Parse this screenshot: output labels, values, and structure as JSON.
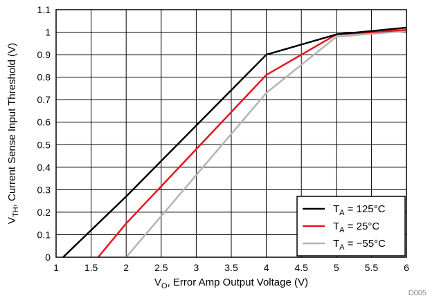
{
  "chart_data": {
    "type": "line",
    "xlabel": {
      "main": "V",
      "sub": "O",
      "rest": ", Error Amp Output Voltage (V)"
    },
    "ylabel": {
      "main": "V",
      "sub": "TH",
      "rest": ", Current Sense Input Threshold (V)"
    },
    "xlim": [
      1,
      6
    ],
    "ylim": [
      0,
      1.1
    ],
    "x_ticks": [
      "1",
      "1.5",
      "2",
      "2.5",
      "3",
      "3.5",
      "4",
      "4.5",
      "5",
      "5.5",
      "6"
    ],
    "y_ticks": [
      "0",
      "0.1",
      "0.2",
      "0.3",
      "0.4",
      "0.5",
      "0.6",
      "0.7",
      "0.8",
      "0.9",
      "1",
      "1.1"
    ],
    "grid": true,
    "legend_position": "bottom-right",
    "figure_id": "D005",
    "series": [
      {
        "name": {
          "main": "T",
          "sub": "A",
          "rest": " = 125°C"
        },
        "color": "#000000",
        "points": [
          [
            1.1,
            0
          ],
          [
            2.0,
            0.27
          ],
          [
            4.0,
            0.9
          ],
          [
            5.0,
            0.99
          ],
          [
            6.0,
            1.02
          ]
        ]
      },
      {
        "name": {
          "main": "T",
          "sub": "A",
          "rest": " = 25°C"
        },
        "color": "#e8141b",
        "points": [
          [
            1.6,
            0
          ],
          [
            2.0,
            0.15
          ],
          [
            4.0,
            0.81
          ],
          [
            5.0,
            0.99
          ],
          [
            6.0,
            1.01
          ]
        ]
      },
      {
        "name": {
          "main": "T",
          "sub": "A",
          "rest": " = −55°C"
        },
        "color": "#b4b4b4",
        "points": [
          [
            2.0,
            0
          ],
          [
            4.0,
            0.73
          ],
          [
            5.0,
            0.98
          ],
          [
            6.0,
            1.005
          ]
        ]
      }
    ]
  }
}
